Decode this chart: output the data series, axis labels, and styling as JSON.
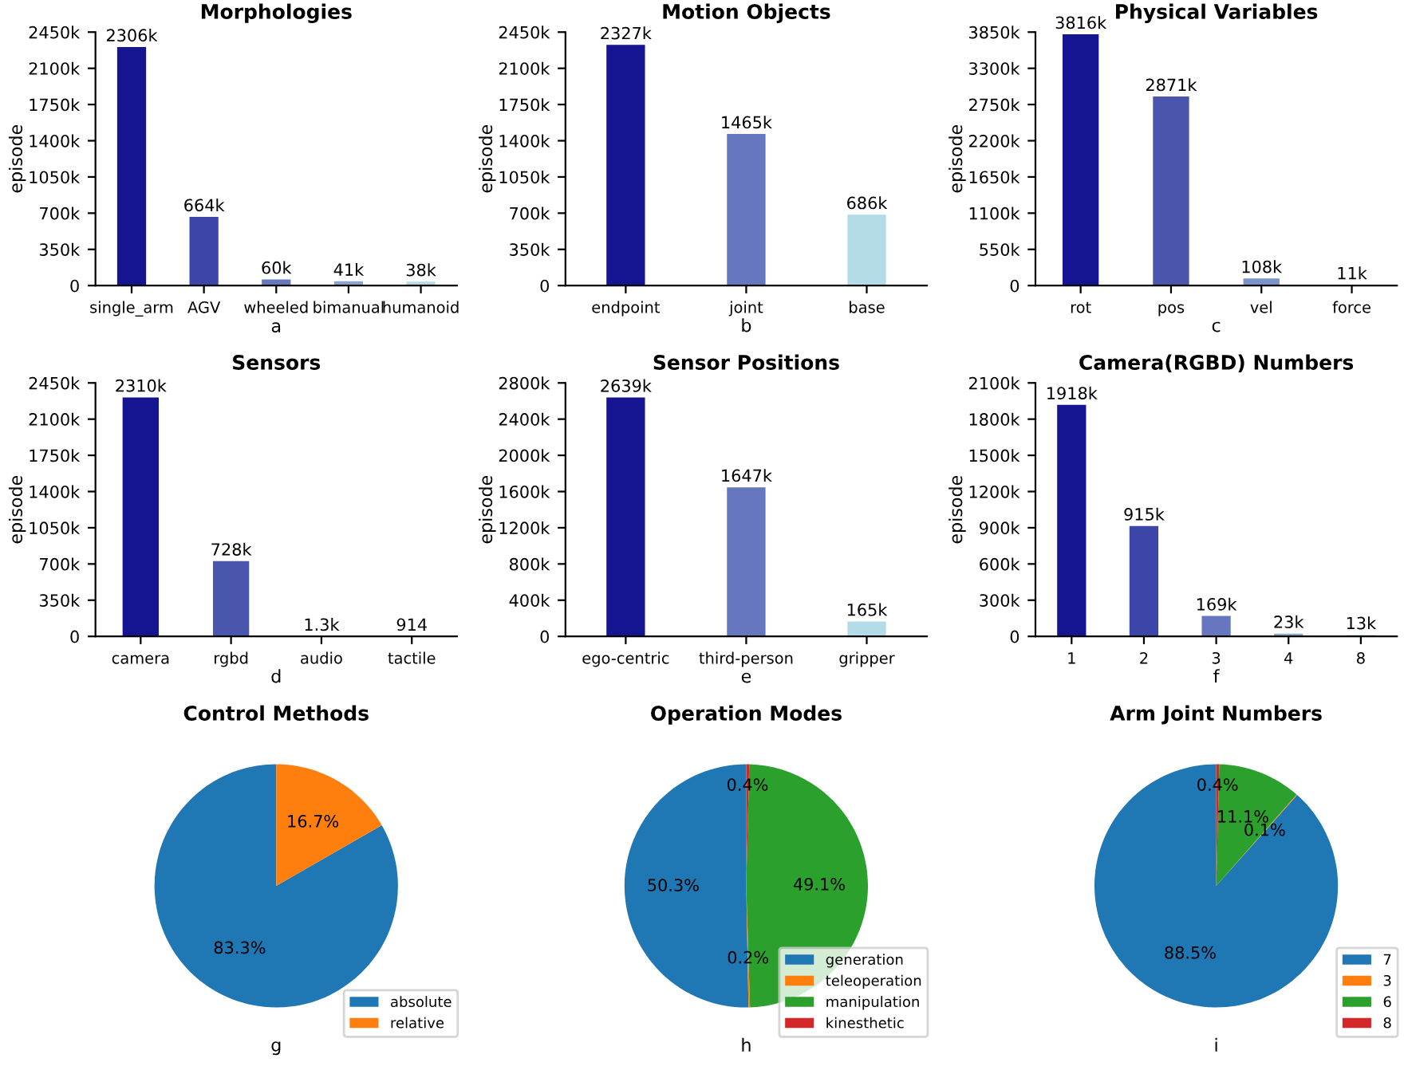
{
  "chart_data": [
    {
      "type": "bar",
      "title": "Morphologies",
      "xlabel": "a",
      "ylabel": "episode",
      "categories": [
        "single_arm",
        "AGV",
        "wheeled",
        "bimanual",
        "humanoid"
      ],
      "values": [
        2306000,
        664000,
        60000,
        41000,
        38000
      ],
      "colors": [
        "#151591",
        "#3c46a8",
        "#6677bf",
        "#8aa4d2",
        "#b3dbe8"
      ],
      "value_labels": [
        "2306k",
        "664k",
        "60k",
        "41k",
        "38k"
      ],
      "ylim": [
        0,
        2450000
      ],
      "yticks": [
        0,
        {
          "value": 350000,
          "label": "350k"
        },
        {
          "value": 700000,
          "label": "700k"
        },
        {
          "value": 1050000,
          "label": "1050k"
        },
        {
          "value": 1400000,
          "label": "1400k"
        },
        {
          "value": 1750000,
          "label": "1750k"
        },
        {
          "value": 2100000,
          "label": "2100k"
        },
        {
          "value": 2450000,
          "label": "2450k"
        }
      ],
      "grid": false
    },
    {
      "type": "bar",
      "title": "Motion Objects",
      "xlabel": "b",
      "ylabel": "episode",
      "categories": [
        "endpoint",
        "joint",
        "base"
      ],
      "values": [
        2327000,
        1465000,
        686000
      ],
      "colors": [
        "#151591",
        "#6677bf",
        "#b3dbe8"
      ],
      "value_labels": [
        "2327k",
        "1465k",
        "686k"
      ],
      "ylim": [
        0,
        2450000
      ],
      "yticks": [
        0,
        {
          "value": 350000,
          "label": "350k"
        },
        {
          "value": 700000,
          "label": "700k"
        },
        {
          "value": 1050000,
          "label": "1050k"
        },
        {
          "value": 1400000,
          "label": "1400k"
        },
        {
          "value": 1750000,
          "label": "1750k"
        },
        {
          "value": 2100000,
          "label": "2100k"
        },
        {
          "value": 2450000,
          "label": "2450k"
        }
      ],
      "grid": false
    },
    {
      "type": "bar",
      "title": "Physical Variables",
      "xlabel": "c",
      "ylabel": "episode",
      "categories": [
        "rot",
        "pos",
        "vel",
        "force"
      ],
      "values": [
        3816000,
        2871000,
        108000,
        11000
      ],
      "colors": [
        "#151591",
        "#4a55ae",
        "#7b93cc",
        "#b3dbe8"
      ],
      "value_labels": [
        "3816k",
        "2871k",
        "108k",
        "11k"
      ],
      "ylim": [
        0,
        3850000
      ],
      "yticks": [
        0,
        {
          "value": 550000,
          "label": "550k"
        },
        {
          "value": 1100000,
          "label": "1100k"
        },
        {
          "value": 1650000,
          "label": "1650k"
        },
        {
          "value": 2200000,
          "label": "2200k"
        },
        {
          "value": 2750000,
          "label": "2750k"
        },
        {
          "value": 3300000,
          "label": "3300k"
        },
        {
          "value": 3850000,
          "label": "3850k"
        }
      ],
      "grid": false
    },
    {
      "type": "bar",
      "title": "Sensors",
      "xlabel": "d",
      "ylabel": "episode",
      "categories": [
        "camera",
        "rgbd",
        "audio",
        "tactile"
      ],
      "values": [
        2310000,
        728000,
        1300,
        914
      ],
      "colors": [
        "#151591",
        "#4a55ae",
        "#7b93cc",
        "#b3dbe8"
      ],
      "value_labels": [
        "2310k",
        "728k",
        "1.3k",
        "914"
      ],
      "ylim": [
        0,
        2450000
      ],
      "yticks": [
        0,
        {
          "value": 350000,
          "label": "350k"
        },
        {
          "value": 700000,
          "label": "700k"
        },
        {
          "value": 1050000,
          "label": "1050k"
        },
        {
          "value": 1400000,
          "label": "1400k"
        },
        {
          "value": 1750000,
          "label": "1750k"
        },
        {
          "value": 2100000,
          "label": "2100k"
        },
        {
          "value": 2450000,
          "label": "2450k"
        }
      ],
      "grid": false
    },
    {
      "type": "bar",
      "title": "Sensor Positions",
      "xlabel": "e",
      "ylabel": "episode",
      "categories": [
        "ego-centric",
        "third-person",
        "gripper"
      ],
      "values": [
        2639000,
        1647000,
        165000
      ],
      "colors": [
        "#151591",
        "#6677bf",
        "#b3dbe8"
      ],
      "value_labels": [
        "2639k",
        "1647k",
        "165k"
      ],
      "ylim": [
        0,
        2800000
      ],
      "yticks": [
        0,
        {
          "value": 400000,
          "label": "400k"
        },
        {
          "value": 800000,
          "label": "800k"
        },
        {
          "value": 1200000,
          "label": "1200k"
        },
        {
          "value": 1600000,
          "label": "1600k"
        },
        {
          "value": 2000000,
          "label": "2000k"
        },
        {
          "value": 2400000,
          "label": "2400k"
        },
        {
          "value": 2800000,
          "label": "2800k"
        }
      ],
      "grid": false
    },
    {
      "type": "bar",
      "title": "Camera(RGBD) Numbers",
      "xlabel": "f",
      "ylabel": "episode",
      "categories": [
        "1",
        "2",
        "3",
        "4",
        "8"
      ],
      "values": [
        1918000,
        915000,
        169000,
        23000,
        13000
      ],
      "colors": [
        "#151591",
        "#3c46a8",
        "#6677bf",
        "#8aa4d2",
        "#b3dbe8"
      ],
      "value_labels": [
        "1918k",
        "915k",
        "169k",
        "23k",
        "13k"
      ],
      "ylim": [
        0,
        2100000
      ],
      "yticks": [
        0,
        {
          "value": 300000,
          "label": "300k"
        },
        {
          "value": 600000,
          "label": "600k"
        },
        {
          "value": 900000,
          "label": "900k"
        },
        {
          "value": 1200000,
          "label": "1200k"
        },
        {
          "value": 1500000,
          "label": "1500k"
        },
        {
          "value": 1800000,
          "label": "1800k"
        },
        {
          "value": 2100000,
          "label": "2100k"
        }
      ],
      "grid": false
    },
    {
      "type": "pie",
      "title": "Control Methods",
      "xlabel": "g",
      "categories": [
        "absolute",
        "relative"
      ],
      "values": [
        83.3,
        16.7
      ],
      "colors": [
        "#1f77b4",
        "#ff7f0e"
      ],
      "value_labels": [
        "83.3%",
        "16.7%"
      ],
      "legend": "bottom right"
    },
    {
      "type": "pie",
      "title": "Operation Modes",
      "xlabel": "h",
      "categories": [
        "generation",
        "teleoperation",
        "manipulation",
        "kinesthetic"
      ],
      "values": [
        50.3,
        0.2,
        49.1,
        0.4
      ],
      "colors": [
        "#1f77b4",
        "#ff7f0e",
        "#2ca02c",
        "#d62728"
      ],
      "value_labels": [
        "50.3%",
        "0.2%",
        "49.1%",
        "0.4%"
      ],
      "legend": "bottom right"
    },
    {
      "type": "pie",
      "title": "Arm Joint Numbers",
      "xlabel": "i",
      "categories": [
        "7",
        "3",
        "6",
        "8"
      ],
      "values": [
        88.5,
        0.1,
        11.1,
        0.4
      ],
      "colors": [
        "#1f77b4",
        "#ff7f0e",
        "#2ca02c",
        "#d62728"
      ],
      "value_labels": [
        "88.5%",
        "0.1%",
        "11.1%",
        "0.4%"
      ],
      "legend": "bottom right"
    }
  ]
}
